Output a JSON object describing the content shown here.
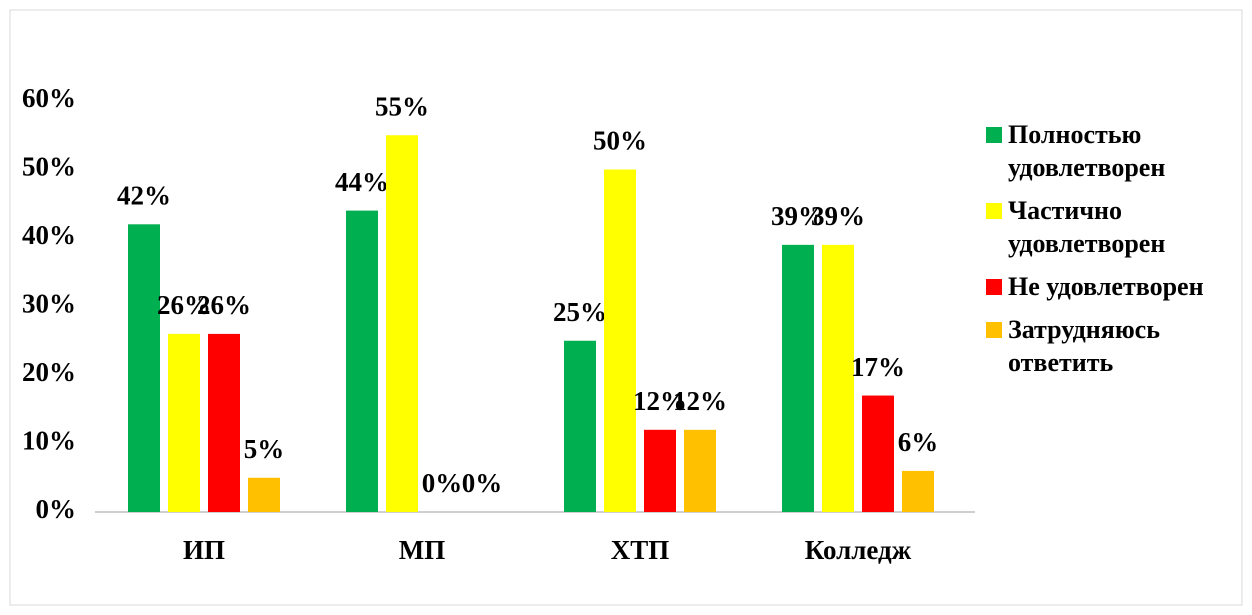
{
  "chart_data": {
    "type": "bar",
    "categories": [
      "ИП",
      "МП",
      "ХТП",
      "Колледж"
    ],
    "series": [
      {
        "name": "Полностью удовлетворен",
        "color": "#00b050",
        "values": [
          42,
          44,
          25,
          39
        ],
        "value_labels": [
          "42%",
          "44%",
          "25%",
          "39%"
        ]
      },
      {
        "name": "Частично удовлетворен",
        "color": "#ffff00",
        "values": [
          26,
          55,
          50,
          39
        ],
        "value_labels": [
          "26%",
          "55%",
          "50%",
          "39%"
        ]
      },
      {
        "name": "Не удовлетворен",
        "color": "#ff0000",
        "values": [
          26,
          0,
          12,
          17
        ],
        "value_labels": [
          "26%",
          "0%",
          "12%",
          "17%"
        ]
      },
      {
        "name": "Затрудняюсь ответить",
        "color": "#ffc000",
        "values": [
          5,
          0,
          12,
          6
        ],
        "value_labels": [
          "5%",
          "0%",
          "12%",
          "6%"
        ]
      }
    ],
    "ylim": [
      0,
      60
    ],
    "yticks": [
      {
        "value": 0,
        "label": "0%"
      },
      {
        "value": 10,
        "label": "10%"
      },
      {
        "value": 20,
        "label": "20%"
      },
      {
        "value": 30,
        "label": "30%"
      },
      {
        "value": 40,
        "label": "40%"
      },
      {
        "value": 50,
        "label": "50%"
      },
      {
        "value": 60,
        "label": "60%"
      }
    ],
    "grid": false,
    "legend": "right"
  }
}
